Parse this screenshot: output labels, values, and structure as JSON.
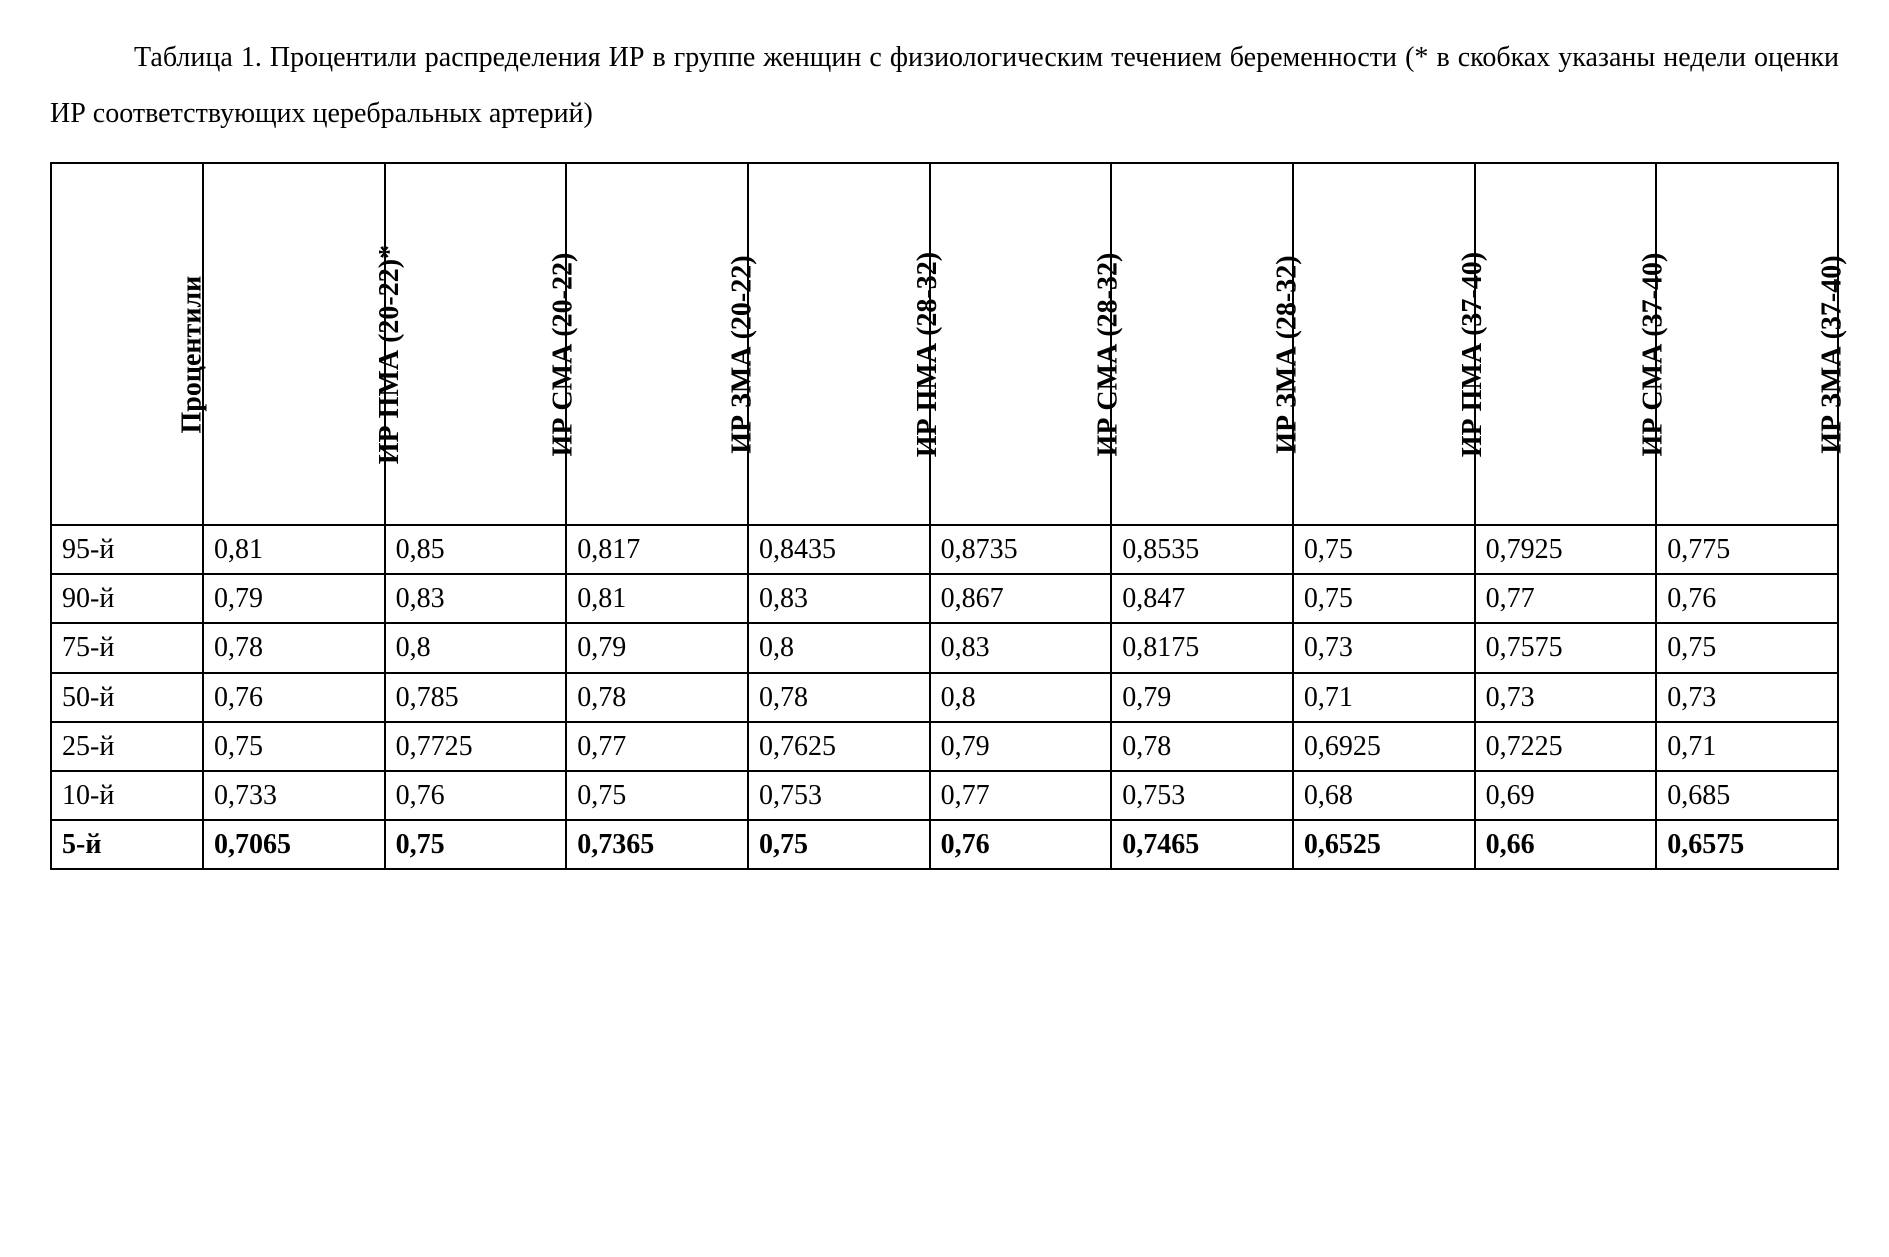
{
  "caption": "Таблица 1. Процентили распределения ИР в группе женщин с физиологическим течением беременности (* в скобках указаны недели оценки ИР соответствующих церебральных артерий)",
  "table": {
    "columns": [
      "Процентили",
      "ИР ПМА (20-22)*",
      "ИР СМА (20-22)",
      "ИР ЗМА (20-22)",
      "ИР ПМА (28-32)",
      "ИР СМА (28-32)",
      "ИР ЗМА (28-32)",
      "ИР ПМА (37-40)",
      "ИР СМА (37-40)",
      "ИР ЗМА (37-40)"
    ],
    "rows": [
      {
        "bold": false,
        "cells": [
          "95-й",
          "0,81",
          "0,85",
          "0,817",
          "0,8435",
          "0,8735",
          "0,8535",
          "0,75",
          "0,7925",
          "0,775"
        ]
      },
      {
        "bold": false,
        "cells": [
          "90-й",
          "0,79",
          "0,83",
          "0,81",
          "0,83",
          "0,867",
          "0,847",
          "0,75",
          "0,77",
          "0,76"
        ]
      },
      {
        "bold": false,
        "cells": [
          "75-й",
          "0,78",
          "0,8",
          "0,79",
          "0,8",
          "0,83",
          "0,8175",
          "0,73",
          "0,7575",
          "0,75"
        ]
      },
      {
        "bold": false,
        "cells": [
          "50-й",
          "0,76",
          "0,785",
          "0,78",
          "0,78",
          "0,8",
          "0,79",
          "0,71",
          "0,73",
          "0,73"
        ]
      },
      {
        "bold": false,
        "cells": [
          "25-й",
          "0,75",
          "0,7725",
          "0,77",
          "0,7625",
          "0,79",
          "0,78",
          "0,6925",
          "0,7225",
          "0,71"
        ]
      },
      {
        "bold": false,
        "cells": [
          "10-й",
          "0,733",
          "0,76",
          "0,75",
          "0,753",
          "0,77",
          "0,753",
          "0,68",
          "0,69",
          "0,685"
        ]
      },
      {
        "bold": true,
        "cells": [
          "5-й",
          "0,7065",
          "0,75",
          "0,7365",
          "0,75",
          "0,76",
          "0,7465",
          "0,6525",
          "0,66",
          "0,6575"
        ]
      }
    ]
  }
}
